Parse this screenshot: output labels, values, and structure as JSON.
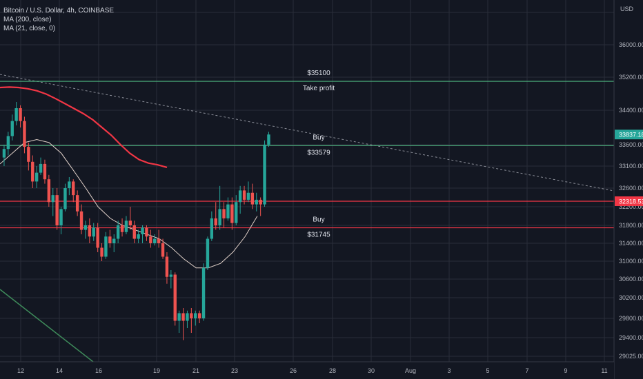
{
  "legend": {
    "symbol": "Bitcoin / U.S. Dollar, 4h, COINBASE",
    "ma200": "MA (200, close)",
    "ma21": "MA (21, close, 0)"
  },
  "colors": {
    "background": "#131722",
    "grid": "#2a2e39",
    "up": "#26a69a",
    "down": "#ef5350",
    "ma200": "#f23645",
    "ma21": "#e0d0c8",
    "horizontal_green": "#4caf7d",
    "horizontal_red": "#f23645",
    "trendline": "#8c8f99",
    "downtrend": "#3e8a5a",
    "axis_text": "#b2b5be"
  },
  "chart_data": {
    "type": "candlestick",
    "currency": "USD",
    "y_ticks": [
      36000,
      35200,
      34400,
      33600,
      33100,
      32600,
      32200,
      31800,
      31400,
      31000,
      30600,
      30200,
      29800,
      29400,
      29025
    ],
    "y_tick_labels": [
      "36000.00",
      "35200.00",
      "34400.00",
      "33600.00",
      "33100.00",
      "32600.00",
      "32200.00",
      "31800.00",
      "31400.00",
      "31000.00",
      "30600.00",
      "30200.00",
      "29800.00",
      "29400.00",
      "29025.00"
    ],
    "x_ticks": [
      "12",
      "14",
      "16",
      "19",
      "21",
      "23",
      "26",
      "28",
      "30",
      "Aug",
      "3",
      "5",
      "7",
      "9",
      "11"
    ],
    "price_labels": [
      {
        "value": 33837.18,
        "text": "33837.18",
        "color": "#26a69a"
      },
      {
        "value": 32318.53,
        "text": "32318.53",
        "color": "#f23645"
      }
    ],
    "horizontal_levels": [
      {
        "price": 35100,
        "color": "#4caf7d",
        "label_above": "$35100",
        "label_below": "Take profit"
      },
      {
        "price": 33579,
        "color": "#4caf7d",
        "label_above": "Buy",
        "label_below": "$33579"
      },
      {
        "price": 32318,
        "color": "#f23645",
        "label_above": "",
        "label_below": ""
      },
      {
        "price": 31745,
        "color": "#f23645",
        "label_above": "Buy",
        "label_below": "$31745"
      }
    ],
    "candles": [
      {
        "o": 33300,
        "h": 33600,
        "l": 33100,
        "c": 33500
      },
      {
        "o": 33500,
        "h": 33900,
        "l": 33350,
        "c": 33800
      },
      {
        "o": 33800,
        "h": 34300,
        "l": 33700,
        "c": 34150
      },
      {
        "o": 34150,
        "h": 34600,
        "l": 34050,
        "c": 34450
      },
      {
        "o": 34450,
        "h": 34520,
        "l": 34000,
        "c": 34150
      },
      {
        "o": 34150,
        "h": 34250,
        "l": 33400,
        "c": 33550
      },
      {
        "o": 33550,
        "h": 33650,
        "l": 33000,
        "c": 33200
      },
      {
        "o": 33200,
        "h": 33350,
        "l": 32600,
        "c": 32750
      },
      {
        "o": 32750,
        "h": 33100,
        "l": 32600,
        "c": 32950
      },
      {
        "o": 32950,
        "h": 33300,
        "l": 32900,
        "c": 33150
      },
      {
        "o": 33150,
        "h": 33250,
        "l": 32700,
        "c": 32800
      },
      {
        "o": 32800,
        "h": 32900,
        "l": 32200,
        "c": 32300
      },
      {
        "o": 32300,
        "h": 32600,
        "l": 32000,
        "c": 32450
      },
      {
        "o": 32450,
        "h": 32600,
        "l": 31700,
        "c": 31800
      },
      {
        "o": 31800,
        "h": 32200,
        "l": 31600,
        "c": 32150
      },
      {
        "o": 32150,
        "h": 32700,
        "l": 32100,
        "c": 32600
      },
      {
        "o": 32600,
        "h": 32850,
        "l": 32450,
        "c": 32750
      },
      {
        "o": 32750,
        "h": 32800,
        "l": 32300,
        "c": 32450
      },
      {
        "o": 32450,
        "h": 32550,
        "l": 32000,
        "c": 32100
      },
      {
        "o": 32100,
        "h": 32250,
        "l": 31600,
        "c": 31700
      },
      {
        "o": 31700,
        "h": 31900,
        "l": 31500,
        "c": 31800
      },
      {
        "o": 31800,
        "h": 31950,
        "l": 31400,
        "c": 31550
      },
      {
        "o": 31550,
        "h": 31850,
        "l": 31450,
        "c": 31750
      },
      {
        "o": 31750,
        "h": 31850,
        "l": 31200,
        "c": 31300
      },
      {
        "o": 31300,
        "h": 31400,
        "l": 31000,
        "c": 31100
      },
      {
        "o": 31100,
        "h": 31650,
        "l": 31050,
        "c": 31550
      },
      {
        "o": 31550,
        "h": 31700,
        "l": 31300,
        "c": 31400
      },
      {
        "o": 31400,
        "h": 31600,
        "l": 31200,
        "c": 31500
      },
      {
        "o": 31500,
        "h": 31900,
        "l": 31400,
        "c": 31800
      },
      {
        "o": 31800,
        "h": 31950,
        "l": 31550,
        "c": 31650
      },
      {
        "o": 31650,
        "h": 32000,
        "l": 31600,
        "c": 31900
      },
      {
        "o": 31900,
        "h": 32200,
        "l": 31700,
        "c": 31800
      },
      {
        "o": 31800,
        "h": 31900,
        "l": 31400,
        "c": 31500
      },
      {
        "o": 31500,
        "h": 31700,
        "l": 31400,
        "c": 31600
      },
      {
        "o": 31600,
        "h": 31800,
        "l": 31400,
        "c": 31750
      },
      {
        "o": 31750,
        "h": 31800,
        "l": 31450,
        "c": 31550
      },
      {
        "o": 31550,
        "h": 31700,
        "l": 31300,
        "c": 31400
      },
      {
        "o": 31400,
        "h": 31600,
        "l": 31350,
        "c": 31500
      },
      {
        "o": 31500,
        "h": 31700,
        "l": 31300,
        "c": 31400
      },
      {
        "o": 31400,
        "h": 31500,
        "l": 31050,
        "c": 31100
      },
      {
        "o": 31100,
        "h": 31200,
        "l": 30500,
        "c": 30650
      },
      {
        "o": 30650,
        "h": 30800,
        "l": 30400,
        "c": 30700
      },
      {
        "o": 30700,
        "h": 30750,
        "l": 29650,
        "c": 29750
      },
      {
        "o": 29750,
        "h": 29950,
        "l": 29500,
        "c": 29900
      },
      {
        "o": 29900,
        "h": 30000,
        "l": 29350,
        "c": 29750
      },
      {
        "o": 29750,
        "h": 29950,
        "l": 29600,
        "c": 29900
      },
      {
        "o": 29900,
        "h": 30000,
        "l": 29500,
        "c": 29800
      },
      {
        "o": 29800,
        "h": 29950,
        "l": 29650,
        "c": 29900
      },
      {
        "o": 29900,
        "h": 29950,
        "l": 29700,
        "c": 29800
      },
      {
        "o": 29800,
        "h": 30950,
        "l": 29750,
        "c": 30850
      },
      {
        "o": 30850,
        "h": 31550,
        "l": 30800,
        "c": 31500
      },
      {
        "o": 31500,
        "h": 32100,
        "l": 31450,
        "c": 31950
      },
      {
        "o": 31950,
        "h": 32300,
        "l": 31700,
        "c": 31800
      },
      {
        "o": 31800,
        "h": 32650,
        "l": 31700,
        "c": 32150
      },
      {
        "o": 32150,
        "h": 32300,
        "l": 31750,
        "c": 31950
      },
      {
        "o": 31950,
        "h": 32400,
        "l": 31900,
        "c": 32250
      },
      {
        "o": 32250,
        "h": 32400,
        "l": 31700,
        "c": 31850
      },
      {
        "o": 31850,
        "h": 32450,
        "l": 31800,
        "c": 32300
      },
      {
        "o": 32300,
        "h": 32650,
        "l": 32050,
        "c": 32550
      },
      {
        "o": 32550,
        "h": 32650,
        "l": 32250,
        "c": 32350
      },
      {
        "o": 32350,
        "h": 32750,
        "l": 32300,
        "c": 32500
      },
      {
        "o": 32500,
        "h": 32700,
        "l": 32150,
        "c": 32250
      },
      {
        "o": 32250,
        "h": 32500,
        "l": 32100,
        "c": 32350
      },
      {
        "o": 32350,
        "h": 32400,
        "l": 32000,
        "c": 32250
      },
      {
        "o": 32250,
        "h": 33700,
        "l": 32200,
        "c": 33600
      },
      {
        "o": 33600,
        "h": 33900,
        "l": 33550,
        "c": 33837
      }
    ],
    "ma200": [
      34950,
      34960,
      34950,
      34920,
      34870,
      34790,
      34680,
      34560,
      34440,
      34320,
      34180,
      34000,
      33820,
      33600,
      33400,
      33250,
      33170,
      33130,
      33070
    ],
    "ma21": [
      33150,
      33400,
      33650,
      33720,
      33650,
      33400,
      33000,
      32600,
      32200,
      31950,
      31800,
      31700,
      31600,
      31500,
      31300,
      31050,
      30850,
      30850,
      30950,
      31200,
      31550,
      32000
    ]
  }
}
